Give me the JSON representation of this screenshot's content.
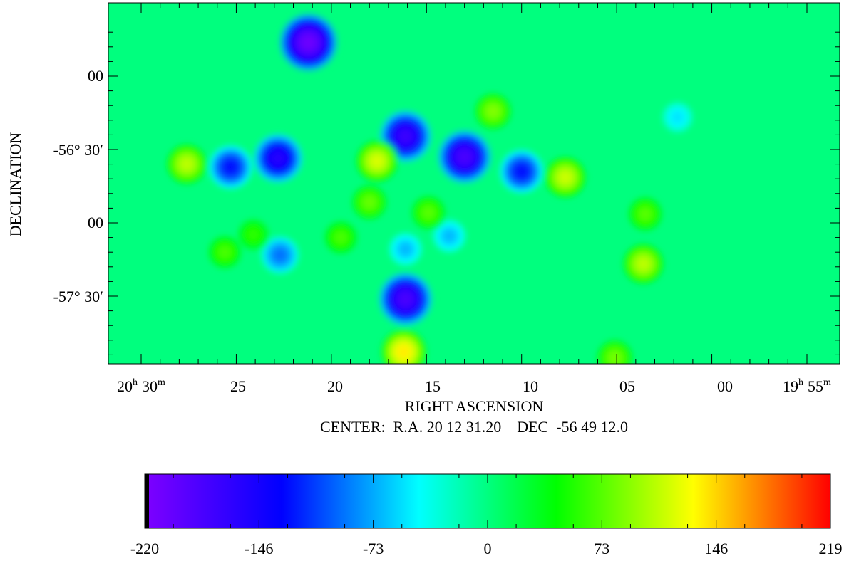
{
  "chart_data": {
    "type": "heatmap",
    "xlabel": "RIGHT ASCENSION",
    "ylabel": "DECLINATION",
    "subtitle": "CENTER:  R.A. 20 12 31.20    DEC  -56 49 12.0",
    "x_ticks": [
      {
        "h": "20",
        "sep": "h",
        "m": "30",
        "unit": "m"
      },
      {
        "m": "25"
      },
      {
        "m": "20"
      },
      {
        "m": "15"
      },
      {
        "m": "10"
      },
      {
        "m": "05"
      },
      {
        "m": "00"
      },
      {
        "h": "19",
        "sep": "h",
        "m": "55",
        "unit": "m"
      }
    ],
    "y_ticks": [
      "00",
      "-56° 30′",
      "00",
      "-57° 30′"
    ],
    "colorbar": {
      "min": -220,
      "max": 219,
      "ticks": [
        "-220",
        "-146",
        "-73",
        "0",
        "73",
        "146",
        "219"
      ],
      "colormap": [
        "#7f00ff",
        "#0000ff",
        "#00ffff",
        "#00ff00",
        "#ffff00",
        "#ff0000"
      ]
    },
    "background_value": 0,
    "blobs": [
      {
        "ra": "20 21.2",
        "dec": -55.77,
        "value": -210
      },
      {
        "ra": "20 16.1",
        "dec": -56.41,
        "value": -175
      },
      {
        "ra": "20 13.0",
        "dec": -56.55,
        "value": -185
      },
      {
        "ra": "20 22.8",
        "dec": -56.56,
        "value": -160
      },
      {
        "ra": "20 25.3",
        "dec": -56.62,
        "value": -130
      },
      {
        "ra": "20 10.0",
        "dec": -56.65,
        "value": -130
      },
      {
        "ra": "20 16.1",
        "dec": -57.52,
        "value": -185
      },
      {
        "ra": "20 22.7",
        "dec": -57.22,
        "value": -95
      },
      {
        "ra": "20 13.8",
        "dec": -57.09,
        "value": -70
      },
      {
        "ra": "20 16.1",
        "dec": -57.18,
        "value": -70
      },
      {
        "ra": "20 01.8",
        "dec": -56.28,
        "value": -55
      },
      {
        "ra": "20 17.6",
        "dec": -56.58,
        "value": 120
      },
      {
        "ra": "20 07.7",
        "dec": -56.69,
        "value": 115
      },
      {
        "ra": "20 27.6",
        "dec": -56.6,
        "value": 110
      },
      {
        "ra": "20 16.2",
        "dec": -57.88,
        "value": 140
      },
      {
        "ra": "20 03.6",
        "dec": -57.28,
        "value": 110
      },
      {
        "ra": "20 11.5",
        "dec": -56.24,
        "value": 90
      },
      {
        "ra": "20 19.5",
        "dec": -57.1,
        "value": 70
      },
      {
        "ra": "20 03.5",
        "dec": -56.94,
        "value": 75
      },
      {
        "ra": "20 18.0",
        "dec": -56.86,
        "value": 80
      },
      {
        "ra": "20 25.6",
        "dec": -57.2,
        "value": 70
      },
      {
        "ra": "20 05.1",
        "dec": -57.92,
        "value": 85
      },
      {
        "ra": "20 14.9",
        "dec": -56.93,
        "value": 75
      },
      {
        "ra": "20 24.1",
        "dec": -57.08,
        "value": 60
      }
    ]
  }
}
